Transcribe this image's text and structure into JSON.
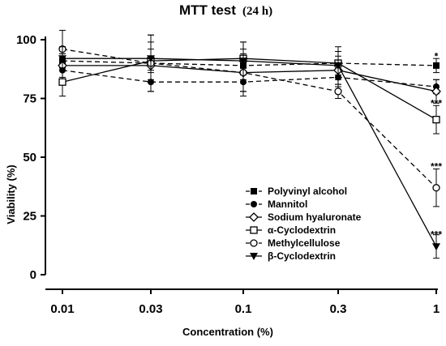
{
  "chart_data": {
    "type": "line",
    "title": "MTT test",
    "title_suffix": "(24 h)",
    "xlabel": "Concentration (%)",
    "ylabel": "Viability (%)",
    "x": [
      "0.01",
      "0.03",
      "0.1",
      "0.3",
      "1"
    ],
    "yticks": [
      "0",
      "25",
      "50",
      "75",
      "100"
    ],
    "ylim": [
      0,
      100
    ],
    "legend_position": "lower-right",
    "grid": false,
    "series": [
      {
        "name": "Polyvinyl alcohol",
        "marker": "square-filled",
        "dash": "dashed",
        "values": [
          91,
          90,
          89,
          90,
          89
        ],
        "errors": [
          3,
          3,
          3,
          3,
          3
        ]
      },
      {
        "name": "Mannitol",
        "marker": "circle-filled",
        "dash": "dashed",
        "values": [
          87,
          82,
          82,
          84,
          80
        ],
        "errors": [
          4,
          4,
          4,
          4,
          3
        ]
      },
      {
        "name": "Sodium hyaluronate",
        "marker": "diamond-open",
        "dash": "solid",
        "values": [
          89,
          89,
          86,
          87,
          78
        ],
        "errors": [
          5,
          7,
          10,
          4,
          5
        ]
      },
      {
        "name": "α-Cyclodextrin",
        "marker": "square-open",
        "dash": "solid",
        "values": [
          82,
          91,
          92,
          90,
          66
        ],
        "errors": [
          6,
          8,
          7,
          5,
          6
        ]
      },
      {
        "name": "Methylcellulose",
        "marker": "circle-open",
        "dash": "dashed",
        "values": [
          96,
          90,
          86,
          78,
          37
        ],
        "errors": [
          8,
          12,
          8,
          3,
          8
        ]
      },
      {
        "name": "β-Cyclodextrin",
        "marker": "triangle-down-filled",
        "dash": "solid",
        "values": [
          92,
          92,
          91,
          89,
          12
        ],
        "errors": [
          5,
          10,
          8,
          8,
          5
        ]
      }
    ],
    "annotations": [
      {
        "text": "*",
        "x": "1",
        "y": 93
      },
      {
        "text": "***",
        "x": "1",
        "y": 73
      },
      {
        "text": "***",
        "x": "1",
        "y": 46
      },
      {
        "text": "***",
        "x": "1",
        "y": 17
      }
    ]
  }
}
